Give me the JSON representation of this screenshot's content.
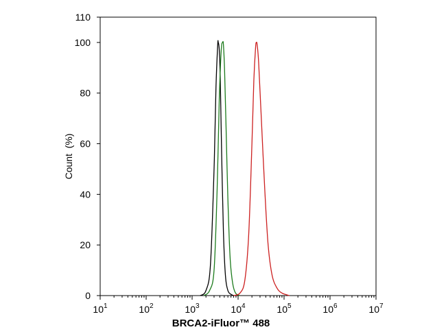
{
  "chart_data": {
    "type": "line",
    "title": "",
    "xlabel": "BRCA2-iFluor™ 488",
    "ylabel": "Count  (%)",
    "x_scale": "log",
    "xlim": [
      10,
      10000000
    ],
    "ylim": [
      0,
      110
    ],
    "x_ticks": [
      {
        "base": "10",
        "exp": "1"
      },
      {
        "base": "10",
        "exp": "2"
      },
      {
        "base": "10",
        "exp": "3"
      },
      {
        "base": "10",
        "exp": "4"
      },
      {
        "base": "10",
        "exp": "5"
      },
      {
        "base": "10",
        "exp": "6"
      },
      {
        "base": "10",
        "exp": "7"
      }
    ],
    "y_ticks": [
      "0",
      "20",
      "40",
      "60",
      "80",
      "100",
      "110"
    ],
    "grid": false,
    "legend": "none",
    "series": [
      {
        "color": "#000000",
        "x": [
          1500,
          2000,
          2500,
          3000,
          3300,
          3600,
          3700,
          3900,
          4100,
          4400,
          4800,
          5300,
          6000,
          7000,
          8000
        ],
        "y": [
          0,
          2,
          12,
          50,
          82,
          99,
          100,
          97,
          85,
          55,
          25,
          8,
          2,
          0.5,
          0
        ]
      },
      {
        "color": "#1b7a1b",
        "x": [
          1800,
          2400,
          3000,
          3500,
          3900,
          4300,
          4600,
          4800,
          5100,
          5500,
          6000,
          6700,
          7600,
          8800,
          11000
        ],
        "y": [
          0,
          2,
          10,
          42,
          78,
          97,
          100,
          99,
          88,
          65,
          38,
          15,
          5,
          1,
          0
        ]
      },
      {
        "color": "#cc1f1f",
        "x": [
          8000,
          11000,
          14000,
          17000,
          20000,
          22000,
          24000,
          25000,
          26000,
          28000,
          32000,
          38000,
          45000,
          55000,
          70000,
          90000,
          130000
        ],
        "y": [
          0,
          1,
          6,
          24,
          60,
          85,
          98,
          100,
          99,
          92,
          70,
          42,
          20,
          8,
          3,
          1,
          0
        ]
      }
    ]
  }
}
